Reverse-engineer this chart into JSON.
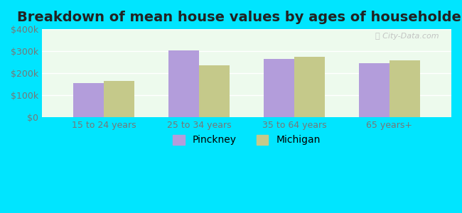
{
  "title": "Breakdown of mean house values by ages of householders",
  "categories": [
    "15 to 24 years",
    "25 to 34 years",
    "35 to 64 years",
    "65 years+"
  ],
  "pinckney": [
    155000,
    305000,
    265000,
    245000
  ],
  "michigan": [
    165000,
    235000,
    275000,
    258000
  ],
  "pinckney_color": "#b39ddb",
  "michigan_color": "#c5c98a",
  "ylim_min": 0,
  "ylim_max": 400000,
  "yticks": [
    0,
    100000,
    200000,
    300000,
    400000
  ],
  "ytick_labels": [
    "$0",
    "$100k",
    "$200k",
    "$300k",
    "$400k"
  ],
  "fig_bg_color": "#00e5ff",
  "plot_bg_color": "#edfaed",
  "title_fontsize": 14,
  "watermark_text": "ⓘ City-Data.com",
  "legend_labels": [
    "Pinckney",
    "Michigan"
  ],
  "bar_width": 0.32,
  "axis_label_color": "#777777",
  "grid_color": "#ffffff",
  "title_color": "#222222"
}
